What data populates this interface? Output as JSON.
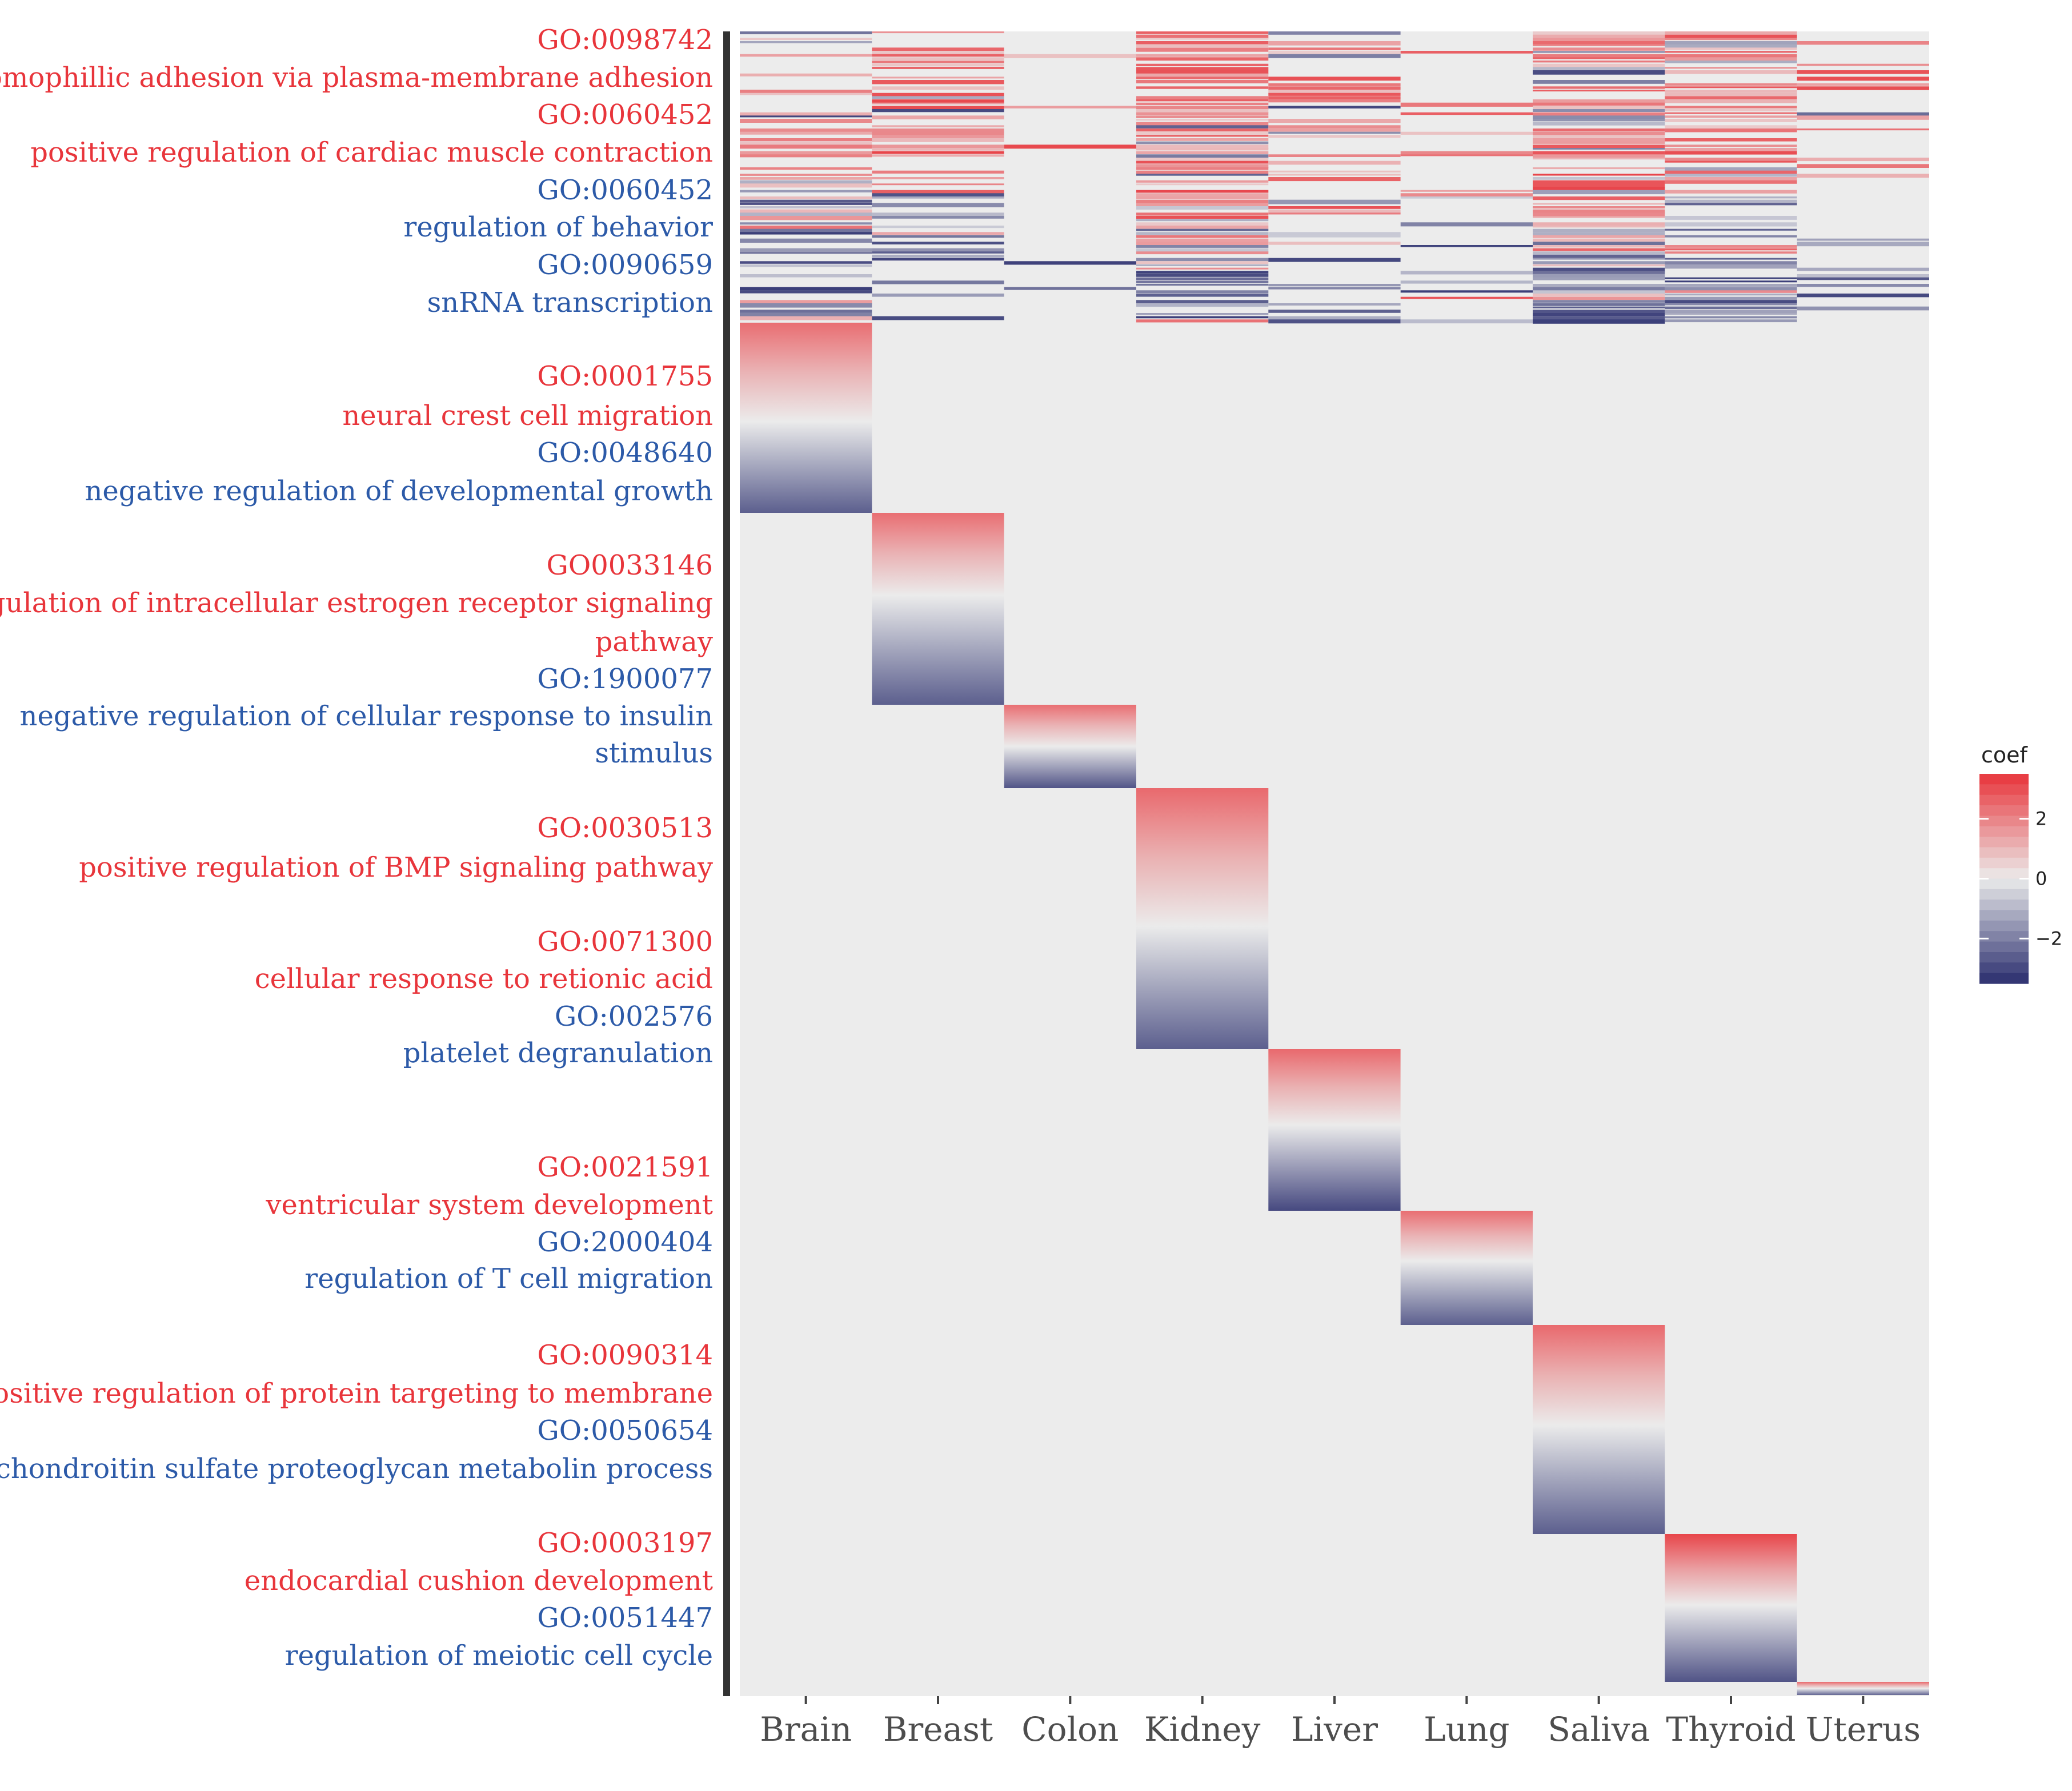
{
  "chart_data": {
    "type": "heatmap",
    "colors": {
      "positive": "#e8353b",
      "neutral": "#ebebeb",
      "negative": "#2a2e6e",
      "background": "#ececec"
    },
    "x": [
      "Brain",
      "Breast",
      "Colon",
      "Kidney",
      "Liver",
      "Lung",
      "Saliva",
      "Thyroid",
      "Uterus"
    ],
    "legend": {
      "title": "coef",
      "ticks": [
        2,
        0,
        -2
      ],
      "tick_labels": [
        "2",
        "0",
        "−2"
      ],
      "range": [
        -3.5,
        3.5
      ]
    },
    "row_labels": [
      {
        "id": "lab-0",
        "text": "GO:0098742",
        "sign": "positive"
      },
      {
        "id": "lab-1",
        "text": "homophillic adhesion via plasma-membrane adhesion",
        "sign": "positive"
      },
      {
        "id": "lab-2",
        "text": "GO:0060452",
        "sign": "positive"
      },
      {
        "id": "lab-3",
        "text": "positive regulation of cardiac muscle contraction",
        "sign": "positive"
      },
      {
        "id": "lab-4",
        "text": "GO:0060452",
        "sign": "negative"
      },
      {
        "id": "lab-5",
        "text": "regulation of behavior",
        "sign": "negative"
      },
      {
        "id": "lab-6",
        "text": "GO:0090659",
        "sign": "negative"
      },
      {
        "id": "lab-7",
        "text": "snRNA transcription",
        "sign": "negative"
      },
      {
        "id": "lab-8",
        "text": "GO:0001755",
        "sign": "positive"
      },
      {
        "id": "lab-9",
        "text": "neural crest cell migration",
        "sign": "positive"
      },
      {
        "id": "lab-10",
        "text": "GO:0048640",
        "sign": "negative"
      },
      {
        "id": "lab-11",
        "text": "negative regulation of developmental growth",
        "sign": "negative"
      },
      {
        "id": "lab-12",
        "text": "GO0033146",
        "sign": "positive"
      },
      {
        "id": "lab-13",
        "text": "regulation of intracellular estrogen receptor signaling",
        "sign": "positive"
      },
      {
        "id": "lab-14",
        "text": "pathway",
        "sign": "positive"
      },
      {
        "id": "lab-15",
        "text": "GO:1900077",
        "sign": "negative"
      },
      {
        "id": "lab-16",
        "text": "negative regulation of cellular response to insulin",
        "sign": "negative"
      },
      {
        "id": "lab-17",
        "text": "stimulus",
        "sign": "negative"
      },
      {
        "id": "lab-18",
        "text": "GO:0030513",
        "sign": "positive"
      },
      {
        "id": "lab-19",
        "text": "positive regulation of BMP signaling pathway",
        "sign": "positive"
      },
      {
        "id": "lab-20",
        "text": "GO:0071300",
        "sign": "positive"
      },
      {
        "id": "lab-21",
        "text": "cellular response to retionic acid",
        "sign": "positive"
      },
      {
        "id": "lab-22",
        "text": "GO:002576",
        "sign": "negative"
      },
      {
        "id": "lab-23",
        "text": "platelet degranulation",
        "sign": "negative"
      },
      {
        "id": "lab-24",
        "text": "GO:0021591",
        "sign": "positive"
      },
      {
        "id": "lab-25",
        "text": "ventricular system development",
        "sign": "positive"
      },
      {
        "id": "lab-26",
        "text": "GO:2000404",
        "sign": "negative"
      },
      {
        "id": "lab-27",
        "text": "regulation of T cell migration",
        "sign": "negative"
      },
      {
        "id": "lab-28",
        "text": "GO:0090314",
        "sign": "positive"
      },
      {
        "id": "lab-29",
        "text": "positive regulation of protein targeting to membrane",
        "sign": "positive"
      },
      {
        "id": "lab-30",
        "text": "GO:0050654",
        "sign": "negative"
      },
      {
        "id": "lab-31",
        "text": "chondroitin sulfate proteoglycan metabolin process",
        "sign": "negative"
      },
      {
        "id": "lab-32",
        "text": "GO:0003197",
        "sign": "positive"
      },
      {
        "id": "lab-33",
        "text": "endocardial cushion development",
        "sign": "positive"
      },
      {
        "id": "lab-34",
        "text": "GO:0051447",
        "sign": "negative"
      },
      {
        "id": "lab-35",
        "text": "regulation of meiotic cell cycle",
        "sign": "negative"
      }
    ],
    "blocks": [
      {
        "tissue": "Brain",
        "max_coef": 2.4,
        "min_coef": -2.6
      },
      {
        "tissue": "Breast",
        "max_coef": 2.4,
        "min_coef": -2.6
      },
      {
        "tissue": "Colon",
        "max_coef": 2.4,
        "min_coef": -2.8
      },
      {
        "tissue": "Kidney",
        "max_coef": 2.5,
        "min_coef": -2.6
      },
      {
        "tissue": "Liver",
        "max_coef": 2.5,
        "min_coef": -3.0
      },
      {
        "tissue": "Lung",
        "max_coef": 2.4,
        "min_coef": -2.6
      },
      {
        "tissue": "Saliva",
        "max_coef": 2.5,
        "min_coef": -2.6
      },
      {
        "tissue": "Thyroid",
        "max_coef": 3.2,
        "min_coef": -2.8
      },
      {
        "tissue": "Uterus",
        "max_coef": 2.5,
        "min_coef": -2.5
      }
    ],
    "shared_region": {
      "description": "features with nonzero coefficients across several tissues (top rows)",
      "rows": 90
    },
    "xlabel": "",
    "ylabel": ""
  }
}
